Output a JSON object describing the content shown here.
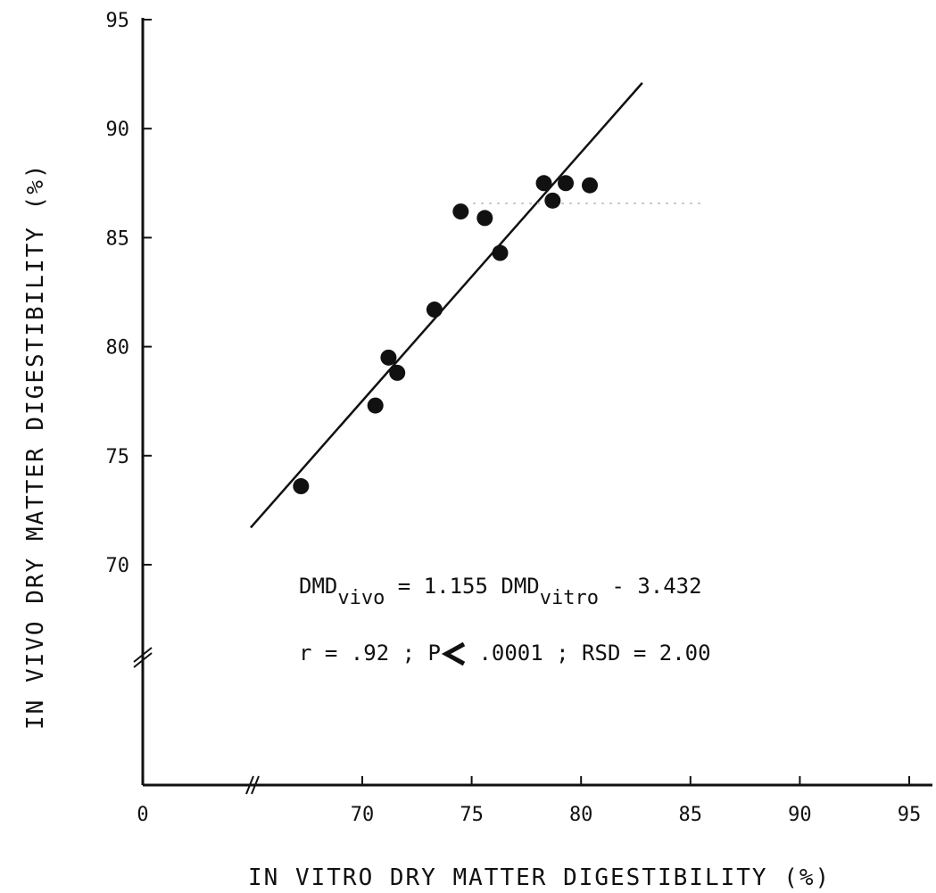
{
  "chart_data": {
    "type": "scatter",
    "xlabel": "IN VITRO DRY MATTER DIGESTIBILITY",
    "xlabel_unit": "(%)",
    "ylabel": "IN VIVO DRY MATTER DIGESTIBILITY",
    "ylabel_unit": "(%)",
    "x_ticks": [
      "0",
      "70",
      "75",
      "80",
      "85",
      "90",
      "95"
    ],
    "y_ticks": [
      "70",
      "75",
      "80",
      "85",
      "90",
      "95"
    ],
    "xlim": [
      65,
      95
    ],
    "ylim": [
      70,
      95
    ],
    "axis_breaks": {
      "x": true,
      "y": true
    },
    "grid": false,
    "points": [
      {
        "x": 67.2,
        "y": 73.6
      },
      {
        "x": 70.6,
        "y": 77.3
      },
      {
        "x": 71.2,
        "y": 79.5
      },
      {
        "x": 71.6,
        "y": 78.8
      },
      {
        "x": 73.3,
        "y": 81.7
      },
      {
        "x": 74.5,
        "y": 86.2
      },
      {
        "x": 75.6,
        "y": 85.9
      },
      {
        "x": 76.3,
        "y": 84.3
      },
      {
        "x": 78.3,
        "y": 87.5
      },
      {
        "x": 78.7,
        "y": 86.7
      },
      {
        "x": 79.3,
        "y": 87.5
      },
      {
        "x": 80.4,
        "y": 87.4
      }
    ],
    "regression_line": {
      "x_start": 64.9,
      "y_start": 71.7,
      "x_end": 82.8,
      "y_end": 92.1
    },
    "annotations": {
      "equation": {
        "lhs": "DMD",
        "lhs_sub": "vivo",
        "mid": " = 1.155 DMD",
        "rhs_sub": "vitro",
        "rhs": " - 3.432"
      },
      "stats": {
        "part1": "r = .92 ; P",
        "part2": " .0001 ; RSD = 2.00"
      }
    }
  }
}
